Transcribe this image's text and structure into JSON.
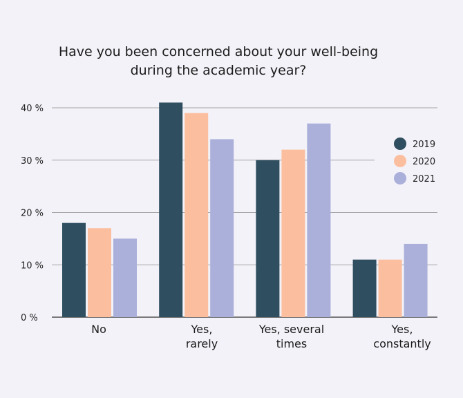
{
  "chart_data": {
    "type": "bar",
    "title": [
      "Have you been concerned about your well-being",
      "during the academic year?"
    ],
    "categories": [
      [
        "No"
      ],
      [
        "Yes,",
        "rarely"
      ],
      [
        "Yes, several",
        "times"
      ],
      [
        "Yes,",
        "constantly"
      ]
    ],
    "series": [
      {
        "name": "2019",
        "color": "#2f4e60",
        "values": [
          18,
          41,
          30,
          11
        ]
      },
      {
        "name": "2020",
        "color": "#fbbf9f",
        "values": [
          17,
          39,
          32,
          11
        ]
      },
      {
        "name": "2021",
        "color": "#aab0da",
        "values": [
          15,
          34,
          37,
          14
        ]
      }
    ],
    "yticks": [
      "0 %",
      "10 %",
      "20 %",
      "30 %",
      "40 %"
    ],
    "ylim": [
      0,
      40
    ],
    "xlabel": "",
    "ylabel": "",
    "grid": true,
    "legend_position": "right",
    "colors": {
      "background": "#f3f2f8",
      "gridline": "#a5a5a5",
      "axis": "#333333"
    }
  }
}
